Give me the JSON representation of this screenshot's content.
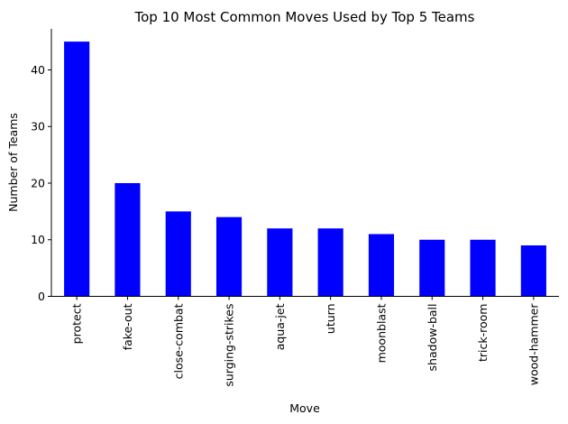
{
  "chart_data": {
    "type": "bar",
    "title": "Top 10 Most Common Moves Used by Top 5 Teams",
    "xlabel": "Move",
    "ylabel": "Number of Teams",
    "categories": [
      "protect",
      "fake-out",
      "close-combat",
      "surging-strikes",
      "aqua-jet",
      "uturn",
      "moonblast",
      "shadow-ball",
      "trick-room",
      "wood-hammer"
    ],
    "values": [
      45,
      20,
      15,
      14,
      12,
      12,
      11,
      10,
      10,
      9
    ],
    "ylim": [
      0,
      47.25
    ],
    "yticks": [
      0,
      10,
      20,
      30,
      40
    ],
    "bar_color": "#0000ff",
    "grid": false,
    "legend": "none"
  }
}
